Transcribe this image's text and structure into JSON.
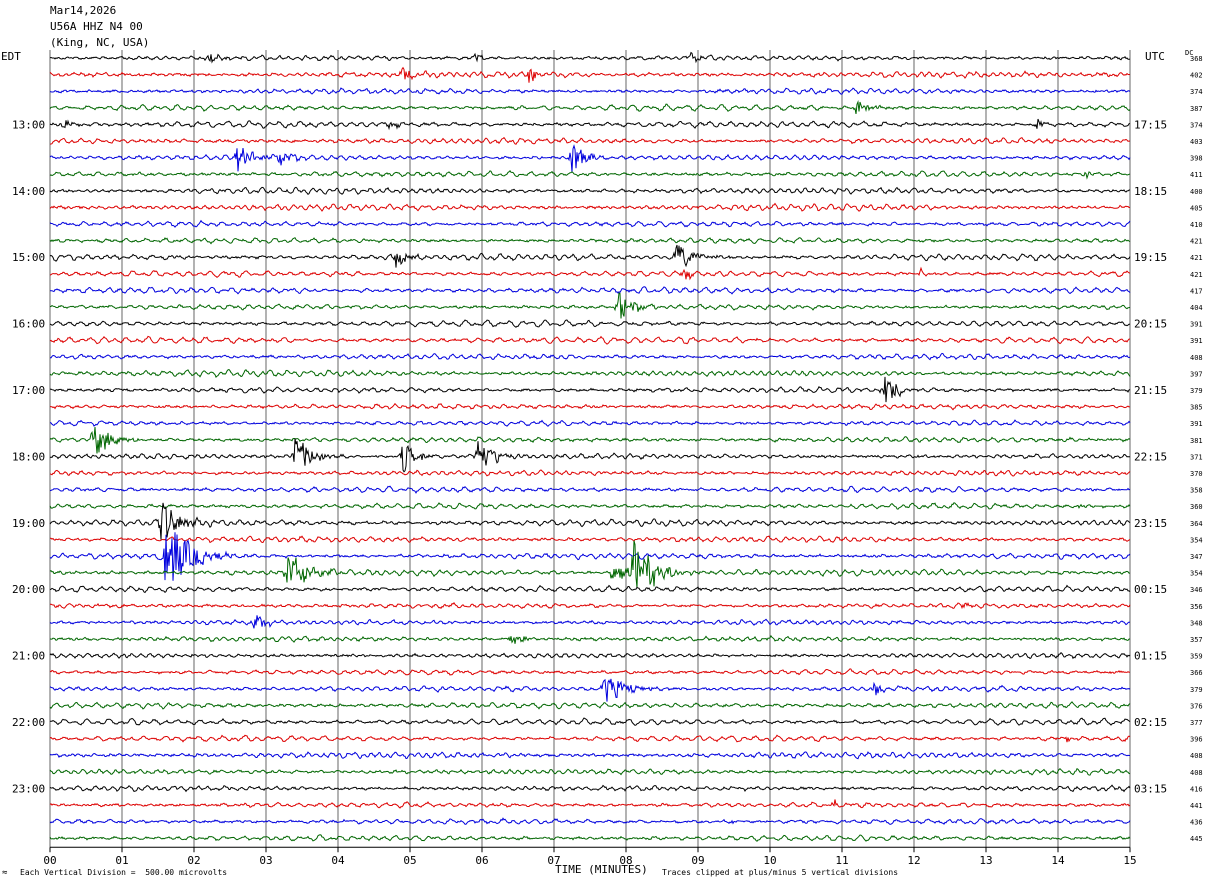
{
  "header": {
    "date": "Mar14,2026",
    "station": "U56A HHZ N4 00",
    "location": "(King, NC, USA)"
  },
  "left_tz": "EDT",
  "right_tz": "UTC",
  "dc_label": "DC",
  "footer": {
    "scale_note": "Each Vertical Division =  500.00 microvolts",
    "clip_note": "Traces clipped at plus/minus 5 vertical divisions",
    "logo_mark": "≈"
  },
  "colors": {
    "trace": [
      "#000000",
      "#dd0000",
      "#0000dd",
      "#006600"
    ],
    "grid": "#000000"
  },
  "chart_data": {
    "type": "helicorder",
    "xlabel": "TIME (MINUTES)",
    "x_ticks": [
      "00",
      "01",
      "02",
      "03",
      "04",
      "05",
      "06",
      "07",
      "08",
      "09",
      "10",
      "11",
      "12",
      "13",
      "14",
      "15"
    ],
    "xlim": [
      0,
      15
    ],
    "trace_count": 48,
    "left_hour_labels": [
      "13:00",
      "14:00",
      "15:00",
      "16:00",
      "17:00",
      "18:00",
      "19:00",
      "20:00",
      "21:00",
      "22:00",
      "23:00"
    ],
    "right_hour_labels": [
      "17:15",
      "18:15",
      "19:15",
      "20:15",
      "21:15",
      "22:15",
      "23:15",
      "00:15",
      "01:15",
      "02:15",
      "03:15"
    ],
    "dc_offsets": [
      368,
      402,
      374,
      387,
      374,
      403,
      398,
      411,
      400,
      405,
      410,
      421,
      421,
      421,
      417,
      404,
      391,
      391,
      408,
      397,
      379,
      385,
      391,
      381,
      371,
      370,
      358,
      360,
      364,
      354,
      347,
      354,
      346,
      356,
      348,
      357,
      359,
      366,
      379,
      376,
      377,
      396,
      408,
      408,
      416,
      441,
      436,
      445
    ],
    "events": [
      {
        "trace": 0,
        "minute": 2.2,
        "amp": 0.6,
        "dur": 0.3
      },
      {
        "trace": 0,
        "minute": 5.9,
        "amp": 0.5,
        "dur": 0.2
      },
      {
        "trace": 0,
        "minute": 8.9,
        "amp": 0.6,
        "dur": 0.15
      },
      {
        "trace": 1,
        "minute": 4.9,
        "amp": 0.7,
        "dur": 0.2
      },
      {
        "trace": 1,
        "minute": 6.65,
        "amp": 1.3,
        "dur": 0.15
      },
      {
        "trace": 3,
        "minute": 11.2,
        "amp": 0.8,
        "dur": 0.3
      },
      {
        "trace": 4,
        "minute": 0.15,
        "amp": 0.8,
        "dur": 0.2
      },
      {
        "trace": 4,
        "minute": 4.7,
        "amp": 1.0,
        "dur": 0.15
      },
      {
        "trace": 4,
        "minute": 13.7,
        "amp": 0.6,
        "dur": 0.15
      },
      {
        "trace": 6,
        "minute": 2.6,
        "amp": 1.4,
        "dur": 0.4
      },
      {
        "trace": 6,
        "minute": 3.2,
        "amp": 0.8,
        "dur": 0.3
      },
      {
        "trace": 6,
        "minute": 7.25,
        "amp": 2.0,
        "dur": 0.25
      },
      {
        "trace": 7,
        "minute": 14.4,
        "amp": 0.5,
        "dur": 0.1
      },
      {
        "trace": 12,
        "minute": 4.8,
        "amp": 1.2,
        "dur": 0.2
      },
      {
        "trace": 12,
        "minute": 8.7,
        "amp": 1.6,
        "dur": 0.35
      },
      {
        "trace": 13,
        "minute": 8.8,
        "amp": 0.8,
        "dur": 0.15
      },
      {
        "trace": 13,
        "minute": 12.1,
        "amp": 0.6,
        "dur": 0.1
      },
      {
        "trace": 15,
        "minute": 7.9,
        "amp": 1.8,
        "dur": 0.3
      },
      {
        "trace": 20,
        "minute": 11.6,
        "amp": 1.8,
        "dur": 0.3
      },
      {
        "trace": 23,
        "minute": 0.6,
        "amp": 2.0,
        "dur": 0.35
      },
      {
        "trace": 24,
        "minute": 3.4,
        "amp": 2.4,
        "dur": 0.35
      },
      {
        "trace": 24,
        "minute": 4.9,
        "amp": 2.0,
        "dur": 0.25
      },
      {
        "trace": 24,
        "minute": 5.95,
        "amp": 2.6,
        "dur": 0.3
      },
      {
        "trace": 27,
        "minute": 14.3,
        "amp": 0.5,
        "dur": 0.1
      },
      {
        "trace": 28,
        "minute": 1.55,
        "amp": 2.6,
        "dur": 0.35
      },
      {
        "trace": 30,
        "minute": 1.6,
        "amp": 4.5,
        "dur": 0.5
      },
      {
        "trace": 31,
        "minute": 3.3,
        "amp": 2.4,
        "dur": 0.4
      },
      {
        "trace": 31,
        "minute": 7.8,
        "amp": 1.0,
        "dur": 0.8
      },
      {
        "trace": 31,
        "minute": 8.1,
        "amp": 4.0,
        "dur": 0.4
      },
      {
        "trace": 33,
        "minute": 12.7,
        "amp": 0.6,
        "dur": 0.1
      },
      {
        "trace": 34,
        "minute": 2.85,
        "amp": 1.0,
        "dur": 0.2
      },
      {
        "trace": 35,
        "minute": 6.4,
        "amp": 0.6,
        "dur": 0.3
      },
      {
        "trace": 38,
        "minute": 7.7,
        "amp": 1.8,
        "dur": 0.4
      },
      {
        "trace": 38,
        "minute": 11.45,
        "amp": 1.0,
        "dur": 0.25
      },
      {
        "trace": 41,
        "minute": 14.1,
        "amp": 0.4,
        "dur": 0.1
      },
      {
        "trace": 45,
        "minute": 10.9,
        "amp": 0.5,
        "dur": 0.1
      },
      {
        "trace": 46,
        "minute": 9.4,
        "amp": 0.5,
        "dur": 0.1
      }
    ]
  }
}
